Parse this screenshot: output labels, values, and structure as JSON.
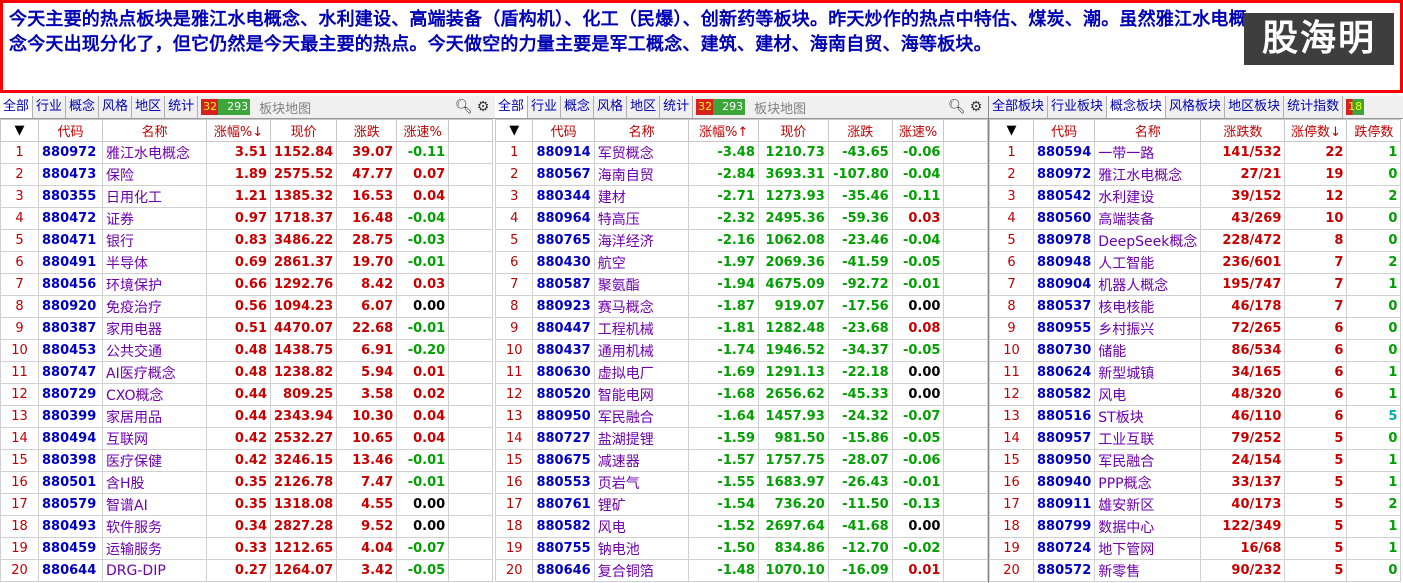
{
  "news": {
    "text": "今天主要的热点板块是雅江水电概念、水利建设、高端装备（盾构机）、化工（民爆）、创新药等板块。昨天炒作的热点中特估、煤炭、潮。虽然雅江水电概念今天出现分化了，但它仍然是今天最主要的热点。今天做空的力量主要是军工概念、建筑、建材、海南自贸、海等板块。",
    "watermark": "股海明灯",
    "text_color": "#0000b4",
    "border_color": "#ff0000"
  },
  "panel1": {
    "tabs": [
      "全部",
      "行业",
      "概念",
      "风格",
      "地区",
      "统计"
    ],
    "count_up": "32",
    "count_all": "293",
    "map_label": "板块地图",
    "headers": [
      "",
      "代码",
      "名称",
      "涨幅%↓",
      "现价",
      "涨跌",
      "涨速%"
    ],
    "rows": [
      [
        "1",
        "880972",
        "雅江水电概念",
        "3.51",
        "1152.84",
        "39.07",
        "-0.11"
      ],
      [
        "2",
        "880473",
        "保险",
        "1.89",
        "2575.52",
        "47.77",
        "0.07"
      ],
      [
        "3",
        "880355",
        "日用化工",
        "1.21",
        "1385.32",
        "16.53",
        "0.04"
      ],
      [
        "4",
        "880472",
        "证券",
        "0.97",
        "1718.37",
        "16.48",
        "-0.04"
      ],
      [
        "5",
        "880471",
        "银行",
        "0.83",
        "3486.22",
        "28.75",
        "-0.03"
      ],
      [
        "6",
        "880491",
        "半导体",
        "0.69",
        "2861.37",
        "19.70",
        "-0.01"
      ],
      [
        "7",
        "880456",
        "环境保护",
        "0.66",
        "1292.76",
        "8.42",
        "0.03"
      ],
      [
        "8",
        "880920",
        "免疫治疗",
        "0.56",
        "1094.23",
        "6.07",
        "0.00"
      ],
      [
        "9",
        "880387",
        "家用电器",
        "0.51",
        "4470.07",
        "22.68",
        "-0.01"
      ],
      [
        "10",
        "880453",
        "公共交通",
        "0.48",
        "1438.75",
        "6.91",
        "-0.20"
      ],
      [
        "11",
        "880747",
        "AI医疗概念",
        "0.48",
        "1238.82",
        "5.94",
        "0.01"
      ],
      [
        "12",
        "880729",
        "CXO概念",
        "0.44",
        "809.25",
        "3.58",
        "0.02"
      ],
      [
        "13",
        "880399",
        "家居用品",
        "0.44",
        "2343.94",
        "10.30",
        "0.04"
      ],
      [
        "14",
        "880494",
        "互联网",
        "0.42",
        "2532.27",
        "10.65",
        "0.04"
      ],
      [
        "15",
        "880398",
        "医疗保健",
        "0.42",
        "3246.15",
        "13.46",
        "-0.01"
      ],
      [
        "16",
        "880501",
        "含H股",
        "0.35",
        "2126.78",
        "7.47",
        "-0.01"
      ],
      [
        "17",
        "880579",
        "智谱AI",
        "0.35",
        "1318.08",
        "4.55",
        "0.00"
      ],
      [
        "18",
        "880493",
        "软件服务",
        "0.34",
        "2827.28",
        "9.52",
        "0.00"
      ],
      [
        "19",
        "880459",
        "运输服务",
        "0.33",
        "1212.65",
        "4.04",
        "-0.07"
      ],
      [
        "20",
        "880644",
        "DRG-DIP",
        "0.27",
        "1264.07",
        "3.42",
        "-0.05"
      ]
    ]
  },
  "panel2": {
    "tabs": [
      "全部",
      "行业",
      "概念",
      "风格",
      "地区",
      "统计"
    ],
    "count_up": "32",
    "count_all": "293",
    "map_label": "板块地图",
    "headers": [
      "",
      "代码",
      "名称",
      "涨幅%↑",
      "现价",
      "涨跌",
      "涨速%"
    ],
    "rows": [
      [
        "1",
        "880914",
        "军贸概念",
        "-3.48",
        "1210.73",
        "-43.65",
        "-0.06"
      ],
      [
        "2",
        "880567",
        "海南自贸",
        "-2.84",
        "3693.31",
        "-107.80",
        "-0.04"
      ],
      [
        "3",
        "880344",
        "建材",
        "-2.71",
        "1273.93",
        "-35.46",
        "-0.11"
      ],
      [
        "4",
        "880964",
        "特高压",
        "-2.32",
        "2495.36",
        "-59.36",
        "0.03"
      ],
      [
        "5",
        "880765",
        "海洋经济",
        "-2.16",
        "1062.08",
        "-23.46",
        "-0.04"
      ],
      [
        "6",
        "880430",
        "航空",
        "-1.97",
        "2069.36",
        "-41.59",
        "-0.05"
      ],
      [
        "7",
        "880587",
        "聚氨酯",
        "-1.94",
        "4675.09",
        "-92.72",
        "-0.01"
      ],
      [
        "8",
        "880923",
        "赛马概念",
        "-1.87",
        "919.07",
        "-17.56",
        "0.00"
      ],
      [
        "9",
        "880447",
        "工程机械",
        "-1.81",
        "1282.48",
        "-23.68",
        "0.08"
      ],
      [
        "10",
        "880437",
        "通用机械",
        "-1.74",
        "1946.52",
        "-34.37",
        "-0.05"
      ],
      [
        "11",
        "880630",
        "虚拟电厂",
        "-1.69",
        "1291.13",
        "-22.18",
        "0.00"
      ],
      [
        "12",
        "880520",
        "智能电网",
        "-1.68",
        "2656.62",
        "-45.33",
        "0.00"
      ],
      [
        "13",
        "880950",
        "军民融合",
        "-1.64",
        "1457.93",
        "-24.32",
        "-0.07"
      ],
      [
        "14",
        "880727",
        "盐湖提锂",
        "-1.59",
        "981.50",
        "-15.86",
        "-0.05"
      ],
      [
        "15",
        "880675",
        "减速器",
        "-1.57",
        "1757.75",
        "-28.07",
        "-0.06"
      ],
      [
        "16",
        "880553",
        "页岩气",
        "-1.55",
        "1683.97",
        "-26.43",
        "-0.01"
      ],
      [
        "17",
        "880761",
        "锂矿",
        "-1.54",
        "736.20",
        "-11.50",
        "-0.13"
      ],
      [
        "18",
        "880582",
        "风电",
        "-1.52",
        "2697.64",
        "-41.68",
        "0.00"
      ],
      [
        "19",
        "880755",
        "钠电池",
        "-1.50",
        "834.86",
        "-12.70",
        "-0.02"
      ],
      [
        "20",
        "880646",
        "复合铜箔",
        "-1.48",
        "1070.10",
        "-16.09",
        "0.01"
      ]
    ]
  },
  "panel3": {
    "tabs": [
      "全部板块",
      "行业板块",
      "概念板块",
      "风格板块",
      "地区板块",
      "统计指数"
    ],
    "tab_extra": "18",
    "headers": [
      "",
      "代码",
      "名称",
      "涨跌数",
      "涨停数↓",
      "跌停数"
    ],
    "rows": [
      [
        "1",
        "880594",
        "一带一路",
        "141/532",
        "22",
        "1"
      ],
      [
        "2",
        "880972",
        "雅江水电概念",
        "27/21",
        "19",
        "0"
      ],
      [
        "3",
        "880542",
        "水利建设",
        "39/152",
        "12",
        "2"
      ],
      [
        "4",
        "880560",
        "高端装备",
        "43/269",
        "10",
        "0"
      ],
      [
        "5",
        "880978",
        "DeepSeek概念",
        "228/472",
        "8",
        "0"
      ],
      [
        "6",
        "880948",
        "人工智能",
        "236/601",
        "7",
        "2"
      ],
      [
        "7",
        "880904",
        "机器人概念",
        "195/747",
        "7",
        "1"
      ],
      [
        "8",
        "880537",
        "核电核能",
        "46/178",
        "7",
        "0"
      ],
      [
        "9",
        "880955",
        "乡村振兴",
        "72/265",
        "6",
        "0"
      ],
      [
        "10",
        "880730",
        "储能",
        "86/534",
        "6",
        "0"
      ],
      [
        "11",
        "880624",
        "新型城镇",
        "34/165",
        "6",
        "1"
      ],
      [
        "12",
        "880582",
        "风电",
        "48/320",
        "6",
        "1"
      ],
      [
        "13",
        "880516",
        "ST板块",
        "46/110",
        "6",
        "5"
      ],
      [
        "14",
        "880957",
        "工业互联",
        "79/252",
        "5",
        "0"
      ],
      [
        "15",
        "880950",
        "军民融合",
        "24/154",
        "5",
        "1"
      ],
      [
        "16",
        "880940",
        "PPP概念",
        "33/137",
        "5",
        "1"
      ],
      [
        "17",
        "880911",
        "雄安新区",
        "40/173",
        "5",
        "2"
      ],
      [
        "18",
        "880799",
        "数据中心",
        "122/349",
        "5",
        "1"
      ],
      [
        "19",
        "880724",
        "地下管网",
        "16/68",
        "5",
        "1"
      ],
      [
        "20",
        "880572",
        "新零售",
        "90/232",
        "5",
        "0"
      ]
    ]
  },
  "colors": {
    "up": "#c80000",
    "down": "#00a000",
    "code": "#0000c0",
    "name": "#7000b0",
    "header": "#c00000"
  }
}
